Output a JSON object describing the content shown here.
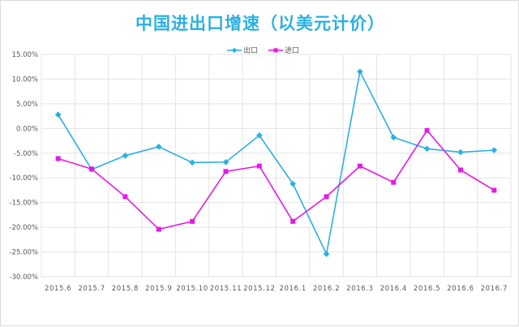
{
  "chart_data": {
    "type": "line",
    "title": "中国进出口增速（以美元计价）",
    "categories": [
      "2015.6",
      "2015.7",
      "2015.8",
      "2015.9",
      "2015.10",
      "2015.11",
      "2015.12",
      "2016.1",
      "2016.2",
      "2016.3",
      "2016.4",
      "2016.5",
      "2016.6",
      "2016.7"
    ],
    "y_ticks": [
      "15.00%",
      "10.00%",
      "5.00%",
      "0.00%",
      "-5.00%",
      "-10.00%",
      "-15.00%",
      "-20.00%",
      "-25.00%",
      "-30.00%"
    ],
    "ylim": [
      -30,
      15
    ],
    "y_unit": "%",
    "grid": true,
    "legend_position": "top-center",
    "series": [
      {
        "name": "出口",
        "color": "#2ab0e0",
        "marker": "diamond",
        "values": [
          2.8,
          -8.3,
          -5.5,
          -3.7,
          -6.9,
          -6.8,
          -1.4,
          -11.2,
          -25.4,
          11.5,
          -1.8,
          -4.1,
          -4.8,
          -4.4
        ]
      },
      {
        "name": "进口",
        "color": "#e619e6",
        "marker": "square",
        "values": [
          -6.1,
          -8.2,
          -13.8,
          -20.4,
          -18.8,
          -8.7,
          -7.6,
          -18.8,
          -13.8,
          -7.6,
          -10.9,
          -0.4,
          -8.4,
          -12.5
        ]
      }
    ]
  }
}
